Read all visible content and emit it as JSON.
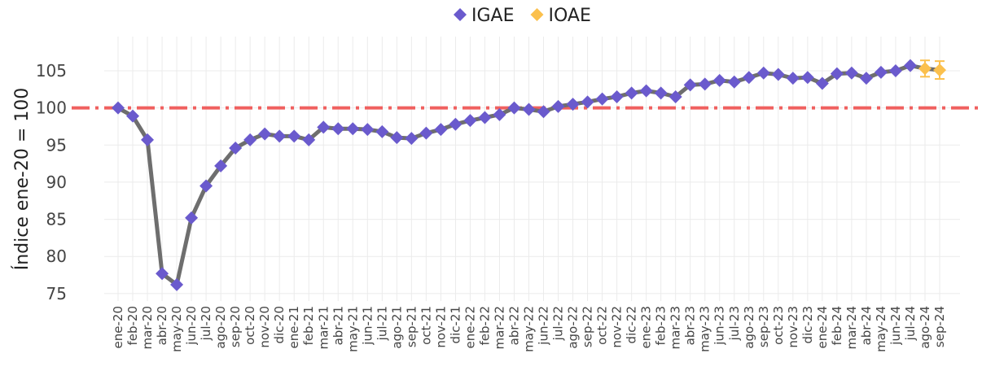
{
  "chart_data": {
    "type": "line",
    "y_label": "Índice ene-20 = 100",
    "categories": [
      "ene-20",
      "feb-20",
      "mar-20",
      "abr-20",
      "may-20",
      "jun-20",
      "jul-20",
      "ago-20",
      "sep-20",
      "oct-20",
      "nov-20",
      "dic-20",
      "ene-21",
      "feb-21",
      "mar-21",
      "abr-21",
      "may-21",
      "jun-21",
      "jul-21",
      "ago-21",
      "sep-21",
      "oct-21",
      "nov-21",
      "dic-21",
      "ene-22",
      "feb-22",
      "mar-22",
      "abr-22",
      "may-22",
      "jun-22",
      "jul-22",
      "ago-22",
      "sep-22",
      "oct-22",
      "nov-22",
      "dic-22",
      "ene-23",
      "feb-23",
      "mar-23",
      "abr-23",
      "may-23",
      "jun-23",
      "jul-23",
      "ago-23",
      "sep-23",
      "oct-23",
      "nov-23",
      "dic-23",
      "ene-24",
      "feb-24",
      "mar-24",
      "abr-24",
      "may-24",
      "jun-24",
      "jul-24",
      "ago-24",
      "sep-24"
    ],
    "series": [
      {
        "name": "IGAE",
        "color": "#6a5acd",
        "values": [
          100,
          98.9,
          95.7,
          77.7,
          76.2,
          85.2,
          89.5,
          92.2,
          94.6,
          95.7,
          96.5,
          96.2,
          96.2,
          95.7,
          97.4,
          97.2,
          97.2,
          97.1,
          96.8,
          96.0,
          95.9,
          96.6,
          97.1,
          97.8,
          98.3,
          98.7,
          99.1,
          100.0,
          99.8,
          99.5,
          100.2,
          100.5,
          100.8,
          101.2,
          101.5,
          102.0,
          102.3,
          102.0,
          101.5,
          103.1,
          103.2,
          103.7,
          103.5,
          104.1,
          104.7,
          104.5,
          104.0,
          104.1,
          103.3,
          104.6,
          104.7,
          104.0,
          104.8,
          105.0,
          105.7,
          null,
          null
        ]
      },
      {
        "name": "IOAE",
        "color": "#fbc04d",
        "values": [
          null,
          null,
          null,
          null,
          null,
          null,
          null,
          null,
          null,
          null,
          null,
          null,
          null,
          null,
          null,
          null,
          null,
          null,
          null,
          null,
          null,
          null,
          null,
          null,
          null,
          null,
          null,
          null,
          null,
          null,
          null,
          null,
          null,
          null,
          null,
          null,
          null,
          null,
          null,
          null,
          null,
          null,
          null,
          null,
          null,
          null,
          null,
          null,
          null,
          null,
          null,
          null,
          null,
          null,
          null,
          105.3,
          105.1
        ],
        "errors": [
          null,
          null,
          null,
          null,
          null,
          null,
          null,
          null,
          null,
          null,
          null,
          null,
          null,
          null,
          null,
          null,
          null,
          null,
          null,
          null,
          null,
          null,
          null,
          null,
          null,
          null,
          null,
          null,
          null,
          null,
          null,
          null,
          null,
          null,
          null,
          null,
          null,
          null,
          null,
          null,
          null,
          null,
          null,
          null,
          null,
          null,
          null,
          null,
          null,
          null,
          null,
          null,
          null,
          null,
          null,
          1.1,
          1.2
        ]
      }
    ],
    "line_color": "#6e6e6e",
    "reference_line": 100,
    "reference_color": "#f0605f",
    "ylim": [
      74,
      109.6
    ],
    "yticks": [
      75,
      80,
      85,
      90,
      95,
      100,
      105
    ],
    "grid": true,
    "legend": "top"
  }
}
